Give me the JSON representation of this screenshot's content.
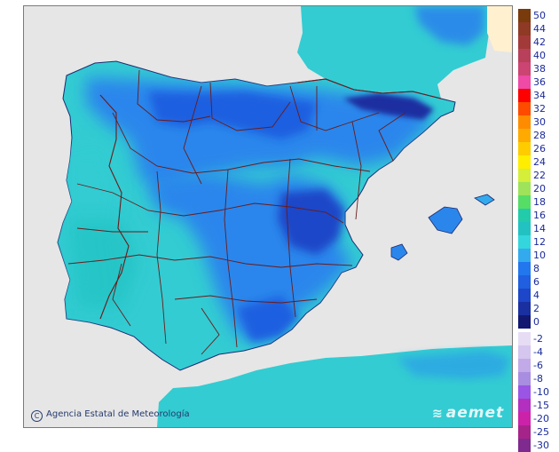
{
  "map": {
    "credit_text": "Agencia Estatal de Meteorología",
    "copyright_symbol": "C",
    "logo_text": "aemet",
    "colors": {
      "sea": "#e6e6e6",
      "france": "#33ccd2",
      "border": "#6b1a1a",
      "coast": "#1c2a70"
    }
  },
  "legend": {
    "positive": [
      {
        "label": "50",
        "color": "#7a3b0c"
      },
      {
        "label": "44",
        "color": "#8f3a24"
      },
      {
        "label": "42",
        "color": "#a33a3a"
      },
      {
        "label": "40",
        "color": "#b8405a"
      },
      {
        "label": "38",
        "color": "#cc4472"
      },
      {
        "label": "36",
        "color": "#ee4aa6"
      },
      {
        "label": "34",
        "color": "#ff0000"
      },
      {
        "label": "32",
        "color": "#ff4b00"
      },
      {
        "label": "30",
        "color": "#ff8c00"
      },
      {
        "label": "28",
        "color": "#ffaa00"
      },
      {
        "label": "26",
        "color": "#ffcc00"
      },
      {
        "label": "24",
        "color": "#ffee00"
      },
      {
        "label": "22",
        "color": "#d4ee3a"
      },
      {
        "label": "20",
        "color": "#9ee35a"
      },
      {
        "label": "18",
        "color": "#55dd66"
      },
      {
        "label": "16",
        "color": "#22ccaa"
      },
      {
        "label": "14",
        "color": "#22c2c2"
      },
      {
        "label": "12",
        "color": "#33d6dd"
      },
      {
        "label": "10",
        "color": "#33aaee"
      },
      {
        "label": "8",
        "color": "#2277ee"
      },
      {
        "label": "6",
        "color": "#1f5fe0"
      },
      {
        "label": "4",
        "color": "#1e46c8"
      },
      {
        "label": "2",
        "color": "#1a2fa0"
      },
      {
        "label": "0",
        "color": "#121870"
      }
    ],
    "negative": [
      {
        "label": "-2",
        "color": "#e6ddf5"
      },
      {
        "label": "-4",
        "color": "#d4c6ef"
      },
      {
        "label": "-6",
        "color": "#c2aae9"
      },
      {
        "label": "-8",
        "color": "#a98de0"
      },
      {
        "label": "-10",
        "color": "#9b55e5"
      },
      {
        "label": "-15",
        "color": "#b32fbf"
      },
      {
        "label": "-20",
        "color": "#cc22aa"
      },
      {
        "label": "-25",
        "color": "#a6248a"
      },
      {
        "label": "-30",
        "color": "#7f2a8e"
      }
    ]
  }
}
